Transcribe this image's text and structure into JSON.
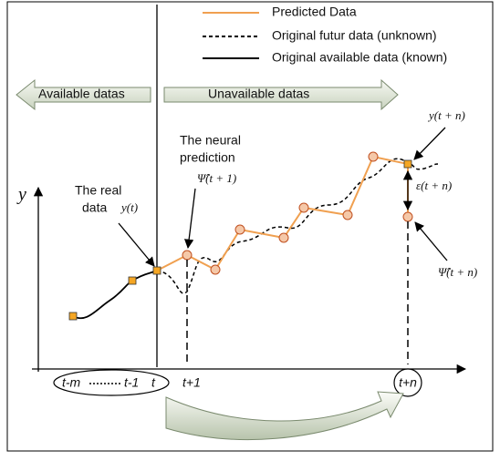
{
  "legend": {
    "items": [
      "Predicted Data",
      "Original futur data (unknown)",
      "Original available data (known)"
    ]
  },
  "regions": {
    "available": "Available datas",
    "unavailable": "Unavailable datas"
  },
  "axis": {
    "y": "y"
  },
  "annotations": {
    "real_data": [
      "The real",
      "data"
    ],
    "y_t": "y(t)",
    "neural_prediction": [
      "The neural",
      "prediction"
    ],
    "psi_t1": "Ψ̂(t + 1)",
    "y_tn": "y(t + n)",
    "eps_tn": "ε(t + n)",
    "psi_tn": "Ψ̂(t + n)"
  },
  "x_labels": [
    "t-m",
    "t-1",
    "t",
    "t+1",
    "t+n"
  ]
}
